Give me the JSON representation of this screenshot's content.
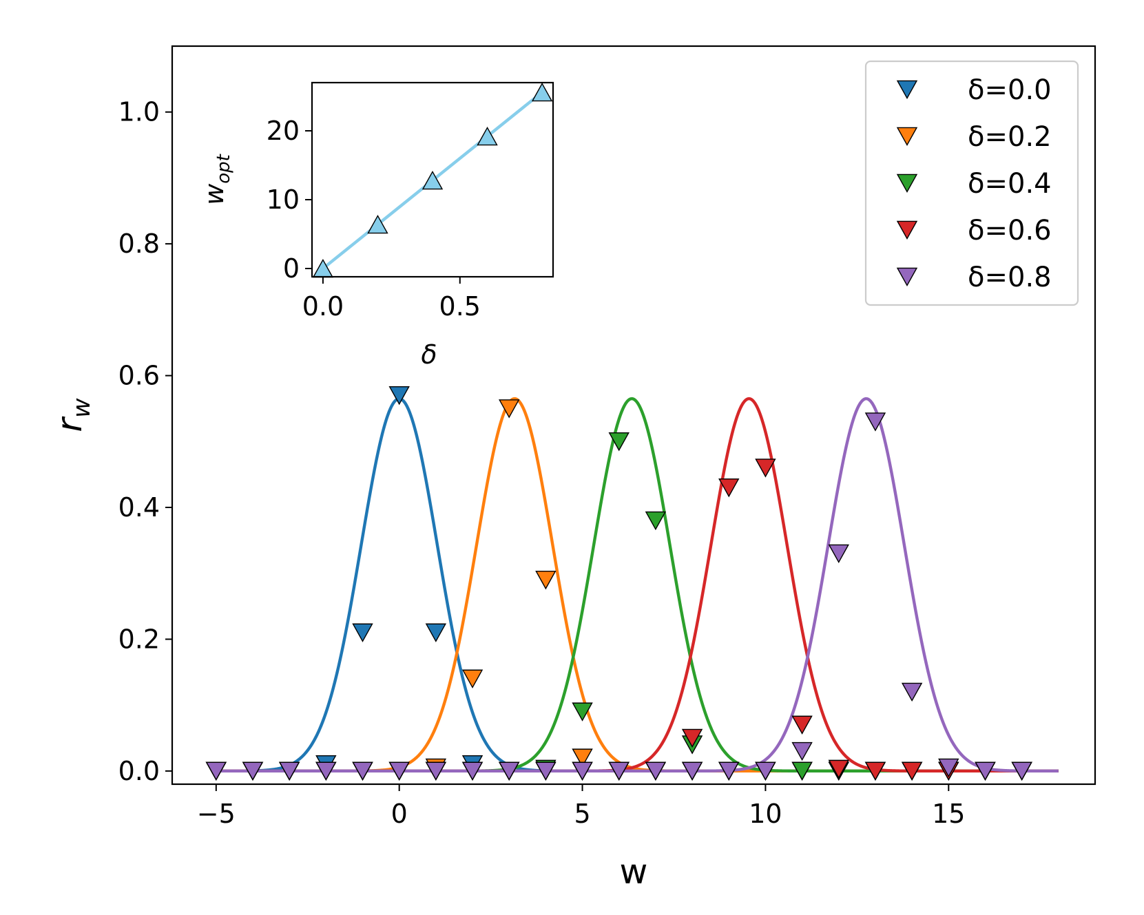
{
  "chart_data": {
    "type": "line",
    "xlabel": "w",
    "ylabel": "r",
    "ylabel_subscript": "w",
    "xlim": [
      -6.2,
      19
    ],
    "ylim": [
      -0.02,
      1.1
    ],
    "xticks": [
      -5,
      0,
      5,
      10,
      15
    ],
    "xtick_labels": [
      "−5",
      "0",
      "5",
      "10",
      "15"
    ],
    "yticks": [
      0.0,
      0.2,
      0.4,
      0.6,
      0.8,
      1.0
    ],
    "ytick_labels": [
      "0.0",
      "0.2",
      "0.4",
      "0.6",
      "0.8",
      "1.0"
    ],
    "legend": {
      "position": "top-right"
    },
    "curve": {
      "peak": 0.565,
      "width": 1.04,
      "x_start": -5,
      "x_end": 18
    },
    "series": [
      {
        "name": "δ=0.0",
        "color": "#1f77b4",
        "center": 0.0,
        "marker_x": [
          -5,
          -4,
          -3,
          -2,
          -1,
          0,
          1,
          2,
          3,
          4,
          5,
          6,
          7,
          8,
          9,
          10,
          11,
          12,
          13,
          14,
          15,
          16,
          17
        ],
        "marker_y": [
          0,
          0,
          0,
          0.01,
          0.21,
          0.57,
          0.21,
          0.01,
          0,
          0,
          0,
          0,
          0,
          0,
          0,
          0,
          0,
          0,
          0,
          0,
          0,
          0,
          0
        ]
      },
      {
        "name": "δ=0.2",
        "color": "#ff7f0e",
        "center": 3.15,
        "marker_x": [
          -5,
          -4,
          -3,
          -2,
          -1,
          0,
          1,
          2,
          3,
          4,
          5,
          6,
          7,
          8,
          9,
          10,
          11,
          12,
          13,
          14,
          15,
          16,
          17
        ],
        "marker_y": [
          0,
          0,
          0,
          0,
          0,
          0,
          0.005,
          0.14,
          0.55,
          0.29,
          0.02,
          0,
          0,
          0,
          0,
          0,
          0,
          0,
          0,
          0,
          0,
          0,
          0
        ]
      },
      {
        "name": "δ=0.4",
        "color": "#2ca02c",
        "center": 6.35,
        "marker_x": [
          -5,
          -4,
          -3,
          -2,
          -1,
          0,
          1,
          2,
          3,
          4,
          5,
          6,
          7,
          8,
          9,
          10,
          11,
          12,
          13,
          14,
          15,
          16,
          17
        ],
        "marker_y": [
          0,
          0,
          0,
          0,
          0,
          0,
          0,
          0,
          0,
          0.003,
          0.09,
          0.5,
          0.38,
          0.04,
          0,
          0,
          0,
          0,
          0,
          0,
          0,
          0,
          0
        ]
      },
      {
        "name": "δ=0.6",
        "color": "#d62728",
        "center": 9.55,
        "marker_x": [
          -5,
          -4,
          -3,
          -2,
          -1,
          0,
          1,
          2,
          3,
          4,
          5,
          6,
          7,
          8,
          9,
          10,
          11,
          12,
          13,
          14,
          15,
          16,
          17
        ],
        "marker_y": [
          0,
          0,
          0,
          0,
          0,
          0,
          0,
          0,
          0,
          0,
          0,
          0,
          0,
          0.05,
          0.43,
          0.46,
          0.07,
          0.003,
          0,
          0,
          0,
          0,
          0
        ]
      },
      {
        "name": "δ=0.8",
        "color": "#9467bd",
        "center": 12.75,
        "marker_x": [
          -5,
          -4,
          -3,
          -2,
          -1,
          0,
          1,
          2,
          3,
          4,
          5,
          6,
          7,
          8,
          9,
          10,
          11,
          12,
          13,
          14,
          15,
          16,
          17
        ],
        "marker_y": [
          0,
          0,
          0,
          0,
          0,
          0,
          0,
          0,
          0,
          0,
          0,
          0,
          0,
          0,
          0,
          0,
          0.03,
          0.33,
          0.53,
          0.12,
          0.005,
          0,
          0
        ]
      }
    ],
    "inset": {
      "type": "line",
      "xlabel": "δ",
      "ylabel": "w",
      "ylabel_subscript": "opt",
      "color": "#87ceeb",
      "xlim": [
        -0.04,
        0.84
      ],
      "ylim": [
        -1.2,
        27
      ],
      "xticks": [
        0.0,
        0.5
      ],
      "xtick_labels": [
        "0.0",
        "0.5"
      ],
      "yticks": [
        0,
        10,
        20
      ],
      "ytick_labels": [
        "0",
        "10",
        "20"
      ],
      "x": [
        0.0,
        0.2,
        0.4,
        0.6,
        0.8
      ],
      "y": [
        0.0,
        6.4,
        12.8,
        19.2,
        25.6
      ]
    }
  }
}
